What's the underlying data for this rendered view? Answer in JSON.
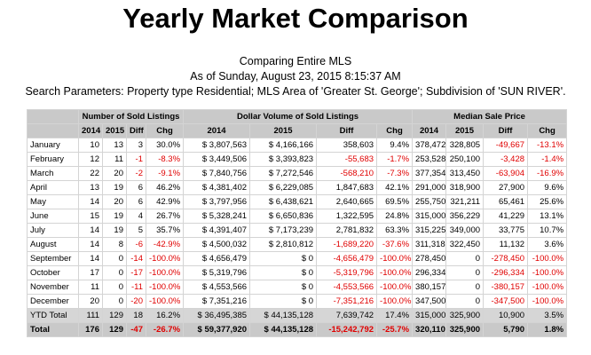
{
  "header": {
    "title": "Yearly Market Comparison",
    "lines": [
      "Comparing Entire MLS",
      "As of Sunday, August 23, 2015 8:15:37 AM",
      "Search Parameters: Property type Residential; MLS Area of 'Greater St. George'; Subdivision of 'SUN RIVER'."
    ]
  },
  "table": {
    "group_headers": [
      "Number of Sold Listings",
      "Dollar Volume of Sold Listings",
      "Median Sale Price"
    ],
    "column_headers": [
      "2014",
      "2015",
      "Diff",
      "Chg",
      "2014",
      "2015",
      "Diff",
      "Chg",
      "2014",
      "2015",
      "Diff",
      "Chg"
    ],
    "rows": [
      [
        "January",
        "10",
        "13",
        "3",
        "30.0%",
        "$ 3,807,563",
        "$ 4,166,166",
        "358,603",
        "9.4%",
        "378,472",
        "328,805",
        "-49,667",
        "-13.1%"
      ],
      [
        "February",
        "12",
        "11",
        "-1",
        "-8.3%",
        "$ 3,449,506",
        "$ 3,393,823",
        "-55,683",
        "-1.7%",
        "253,528",
        "250,100",
        "-3,428",
        "-1.4%"
      ],
      [
        "March",
        "22",
        "20",
        "-2",
        "-9.1%",
        "$ 7,840,756",
        "$ 7,272,546",
        "-568,210",
        "-7.3%",
        "377,354",
        "313,450",
        "-63,904",
        "-16.9%"
      ],
      [
        "April",
        "13",
        "19",
        "6",
        "46.2%",
        "$ 4,381,402",
        "$ 6,229,085",
        "1,847,683",
        "42.1%",
        "291,000",
        "318,900",
        "27,900",
        "9.6%"
      ],
      [
        "May",
        "14",
        "20",
        "6",
        "42.9%",
        "$ 3,797,956",
        "$ 6,438,621",
        "2,640,665",
        "69.5%",
        "255,750",
        "321,211",
        "65,461",
        "25.6%"
      ],
      [
        "June",
        "15",
        "19",
        "4",
        "26.7%",
        "$ 5,328,241",
        "$ 6,650,836",
        "1,322,595",
        "24.8%",
        "315,000",
        "356,229",
        "41,229",
        "13.1%"
      ],
      [
        "July",
        "14",
        "19",
        "5",
        "35.7%",
        "$ 4,391,407",
        "$ 7,173,239",
        "2,781,832",
        "63.3%",
        "315,225",
        "349,000",
        "33,775",
        "10.7%"
      ],
      [
        "August",
        "14",
        "8",
        "-6",
        "-42.9%",
        "$ 4,500,032",
        "$ 2,810,812",
        "-1,689,220",
        "-37.6%",
        "311,318",
        "322,450",
        "11,132",
        "3.6%"
      ],
      [
        "September",
        "14",
        "0",
        "-14",
        "-100.0%",
        "$ 4,656,479",
        "$ 0",
        "-4,656,479",
        "-100.0%",
        "278,450",
        "0",
        "-278,450",
        "-100.0%"
      ],
      [
        "October",
        "17",
        "0",
        "-17",
        "-100.0%",
        "$ 5,319,796",
        "$ 0",
        "-5,319,796",
        "-100.0%",
        "296,334",
        "0",
        "-296,334",
        "-100.0%"
      ],
      [
        "November",
        "11",
        "0",
        "-11",
        "-100.0%",
        "$ 4,553,566",
        "$ 0",
        "-4,553,566",
        "-100.0%",
        "380,157",
        "0",
        "-380,157",
        "-100.0%"
      ],
      [
        "December",
        "20",
        "0",
        "-20",
        "-100.0%",
        "$ 7,351,216",
        "$ 0",
        "-7,351,216",
        "-100.0%",
        "347,500",
        "0",
        "-347,500",
        "-100.0%"
      ],
      [
        "YTD Total",
        "111",
        "129",
        "18",
        "16.2%",
        "$ 36,495,385",
        "$ 44,135,128",
        "7,639,742",
        "17.4%",
        "315,000",
        "325,900",
        "10,900",
        "3.5%"
      ],
      [
        "Total",
        "176",
        "129",
        "-47",
        "-26.7%",
        "$ 59,377,920",
        "$ 44,135,128",
        "-15,242,792",
        "-25.7%",
        "320,110",
        "325,900",
        "5,790",
        "1.8%"
      ]
    ]
  }
}
